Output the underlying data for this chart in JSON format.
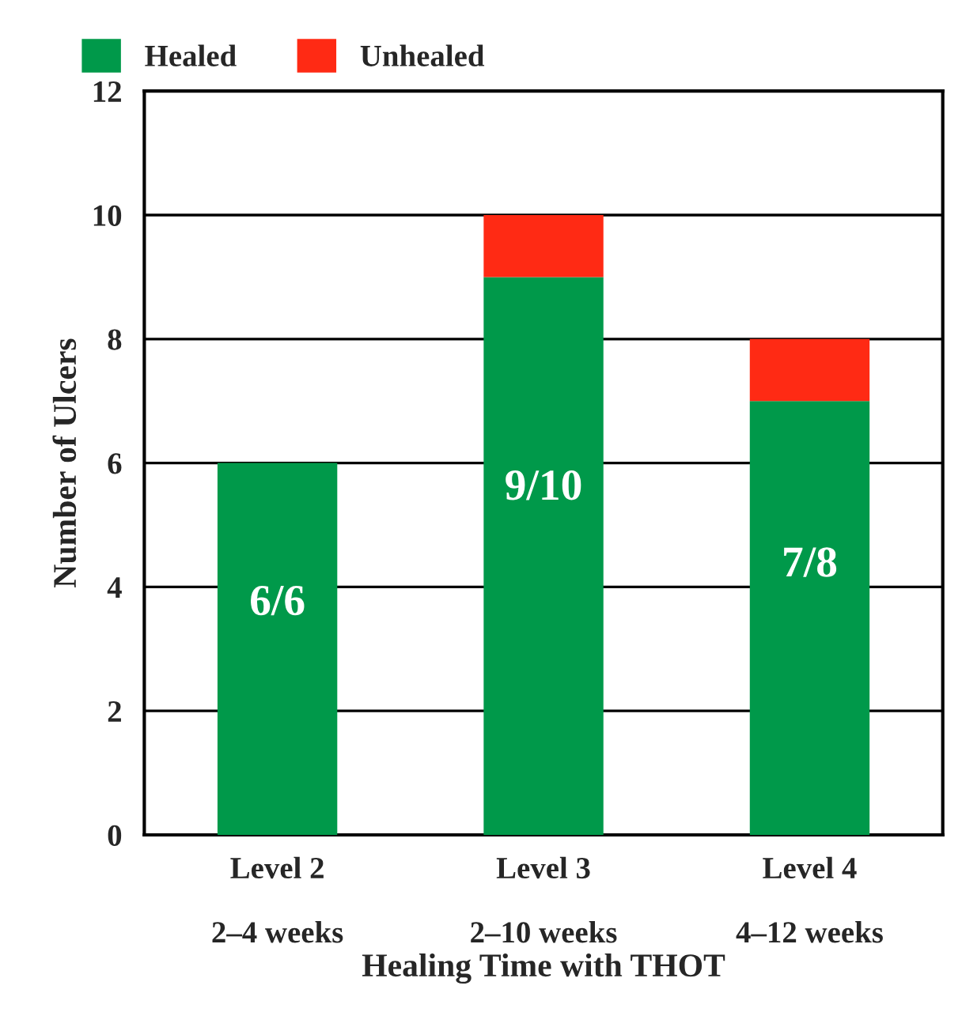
{
  "chart_data": {
    "type": "bar",
    "stacked": true,
    "xlabel": "Healing Time with THOT",
    "ylabel": "Number of Ulcers",
    "categories": [
      "Level 2\n\n2–4 weeks",
      "Level 3\n\n2–10 weeks",
      "Level 4\n\n4–12 weeks"
    ],
    "series": [
      {
        "name": "Healed",
        "color": "#00994a",
        "values": [
          6,
          9,
          7
        ]
      },
      {
        "name": "Unhealed",
        "color": "#ff2a14",
        "values": [
          0,
          1,
          1
        ]
      }
    ],
    "annotations": [
      "6/6",
      "9/10",
      "7/8"
    ],
    "ylim": [
      0,
      12
    ],
    "yticks": [
      0,
      2,
      4,
      6,
      8,
      10,
      12
    ],
    "grid": "y",
    "legend": "top left"
  }
}
